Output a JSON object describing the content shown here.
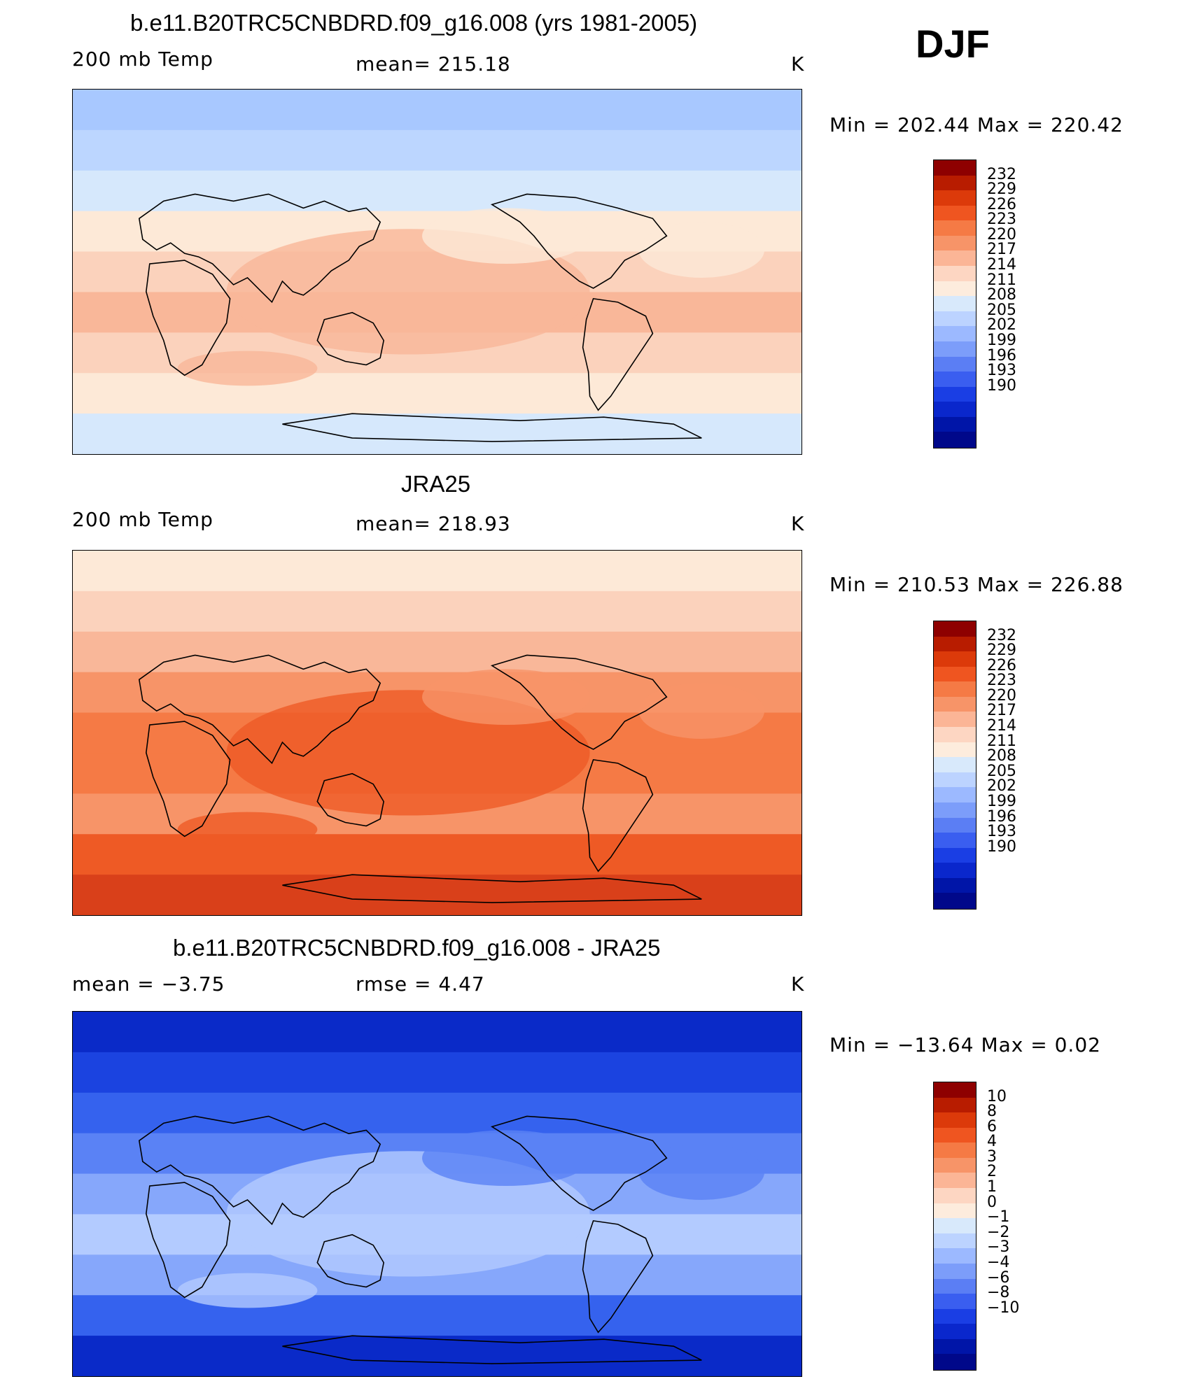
{
  "season": "DJF",
  "panels": [
    {
      "title": "b.e11.B20TRC5CNBDRD.f09_g16.008 (yrs 1981-2005)",
      "left_label": "200 mb Temp",
      "center_label": "mean=  215.18",
      "unit": "K",
      "minmax": "Min  =  202.44  Max  =  220.42",
      "colorbar_ticks": [
        "232",
        "229",
        "226",
        "223",
        "220",
        "217",
        "214",
        "211",
        "208",
        "205",
        "202",
        "199",
        "196",
        "193",
        "190"
      ],
      "bands": [
        "#a8c8ff",
        "#bcd6ff",
        "#d6e8fc",
        "#fde9d7",
        "#fbd2bc",
        "#f9b799",
        "#f7a27e"
      ]
    },
    {
      "title": "JRA25",
      "left_label": "200 mb Temp",
      "center_label": "mean=  218.93",
      "unit": "K",
      "minmax": "Min  =  210.53  Max  =  226.88",
      "colorbar_ticks": [
        "232",
        "229",
        "226",
        "223",
        "220",
        "217",
        "214",
        "211",
        "208",
        "205",
        "202",
        "199",
        "196",
        "193",
        "190"
      ],
      "bands": [
        "#fde9d7",
        "#fbd2bc",
        "#f9b799",
        "#f79468",
        "#f57a45",
        "#ee5a25",
        "#d9401a"
      ]
    },
    {
      "title": "b.e11.B20TRC5CNBDRD.f09_g16.008 - JRA25",
      "left_label": "mean  =    −3.75",
      "center_label": "rmse  =     4.47",
      "unit": "K",
      "minmax": "Min  =  −13.64  Max  =     0.02",
      "colorbar_ticks": [
        "10",
        "8",
        "6",
        "4",
        "3",
        "2",
        "1",
        "0",
        "−1",
        "−2",
        "−3",
        "−4",
        "−6",
        "−8",
        "−10"
      ],
      "bands": [
        "#001a8a",
        "#0a2ac8",
        "#1b43e0",
        "#3562ee",
        "#5a82f5",
        "#86a7fb",
        "#b3cbff",
        "#d6e7fc"
      ]
    }
  ],
  "colorbar_colors": [
    "#8e0000",
    "#b81c00",
    "#dc3a0a",
    "#ef5520",
    "#f57a45",
    "#f79468",
    "#fbb596",
    "#fdd6c2",
    "#fdecdd",
    "#d8e9fb",
    "#bcd3ff",
    "#9cb9ff",
    "#7c9dfa",
    "#5b7ef4",
    "#3a5ef0",
    "#1a3ee4",
    "#0a27cc",
    "#0015a8",
    "#00088a"
  ]
}
